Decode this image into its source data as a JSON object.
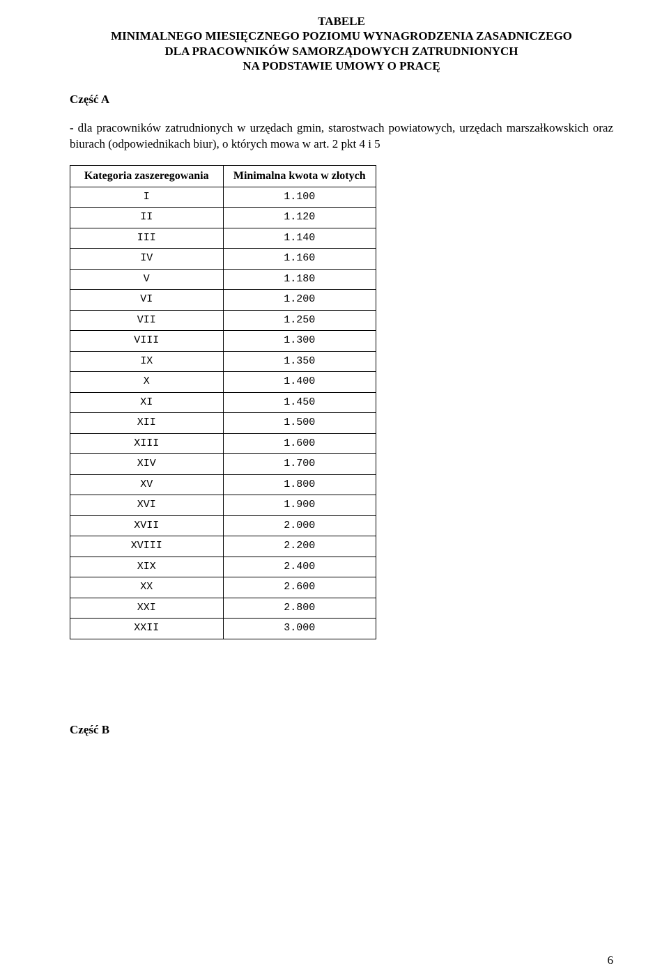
{
  "header": {
    "line1": "TABELE",
    "line2": "MINIMALNEGO MIESIĘCZNEGO POZIOMU WYNAGRODZENIA ZASADNICZEGO",
    "line3": "DLA PRACOWNIKÓW SAMORZĄDOWYCH ZATRUDNIONYCH",
    "line4": "NA PODSTAWIE UMOWY O PRACĘ"
  },
  "section_a": {
    "label": "Część A",
    "intro": "- dla pracowników zatrudnionych w urzędach gmin, starostwach powiatowych, urzędach marszałkowskich oraz biurach (odpowiednikach biur), o których mowa w art. 2 pkt 4 i 5"
  },
  "table": {
    "columns": [
      "Kategoria zaszeregowania",
      "Minimalna kwota w złotych"
    ],
    "rows": [
      [
        "I",
        "1.100"
      ],
      [
        "II",
        "1.120"
      ],
      [
        "III",
        "1.140"
      ],
      [
        "IV",
        "1.160"
      ],
      [
        "V",
        "1.180"
      ],
      [
        "VI",
        "1.200"
      ],
      [
        "VII",
        "1.250"
      ],
      [
        "VIII",
        "1.300"
      ],
      [
        "IX",
        "1.350"
      ],
      [
        "X",
        "1.400"
      ],
      [
        "XI",
        "1.450"
      ],
      [
        "XII",
        "1.500"
      ],
      [
        "XIII",
        "1.600"
      ],
      [
        "XIV",
        "1.700"
      ],
      [
        "XV",
        "1.800"
      ],
      [
        "XVI",
        "1.900"
      ],
      [
        "XVII",
        "2.000"
      ],
      [
        "XVIII",
        "2.200"
      ],
      [
        "XIX",
        "2.400"
      ],
      [
        "XX",
        "2.600"
      ],
      [
        "XXI",
        "2.800"
      ],
      [
        "XXII",
        "3.000"
      ]
    ]
  },
  "section_b": {
    "label": "Część B"
  },
  "page_number": "6"
}
